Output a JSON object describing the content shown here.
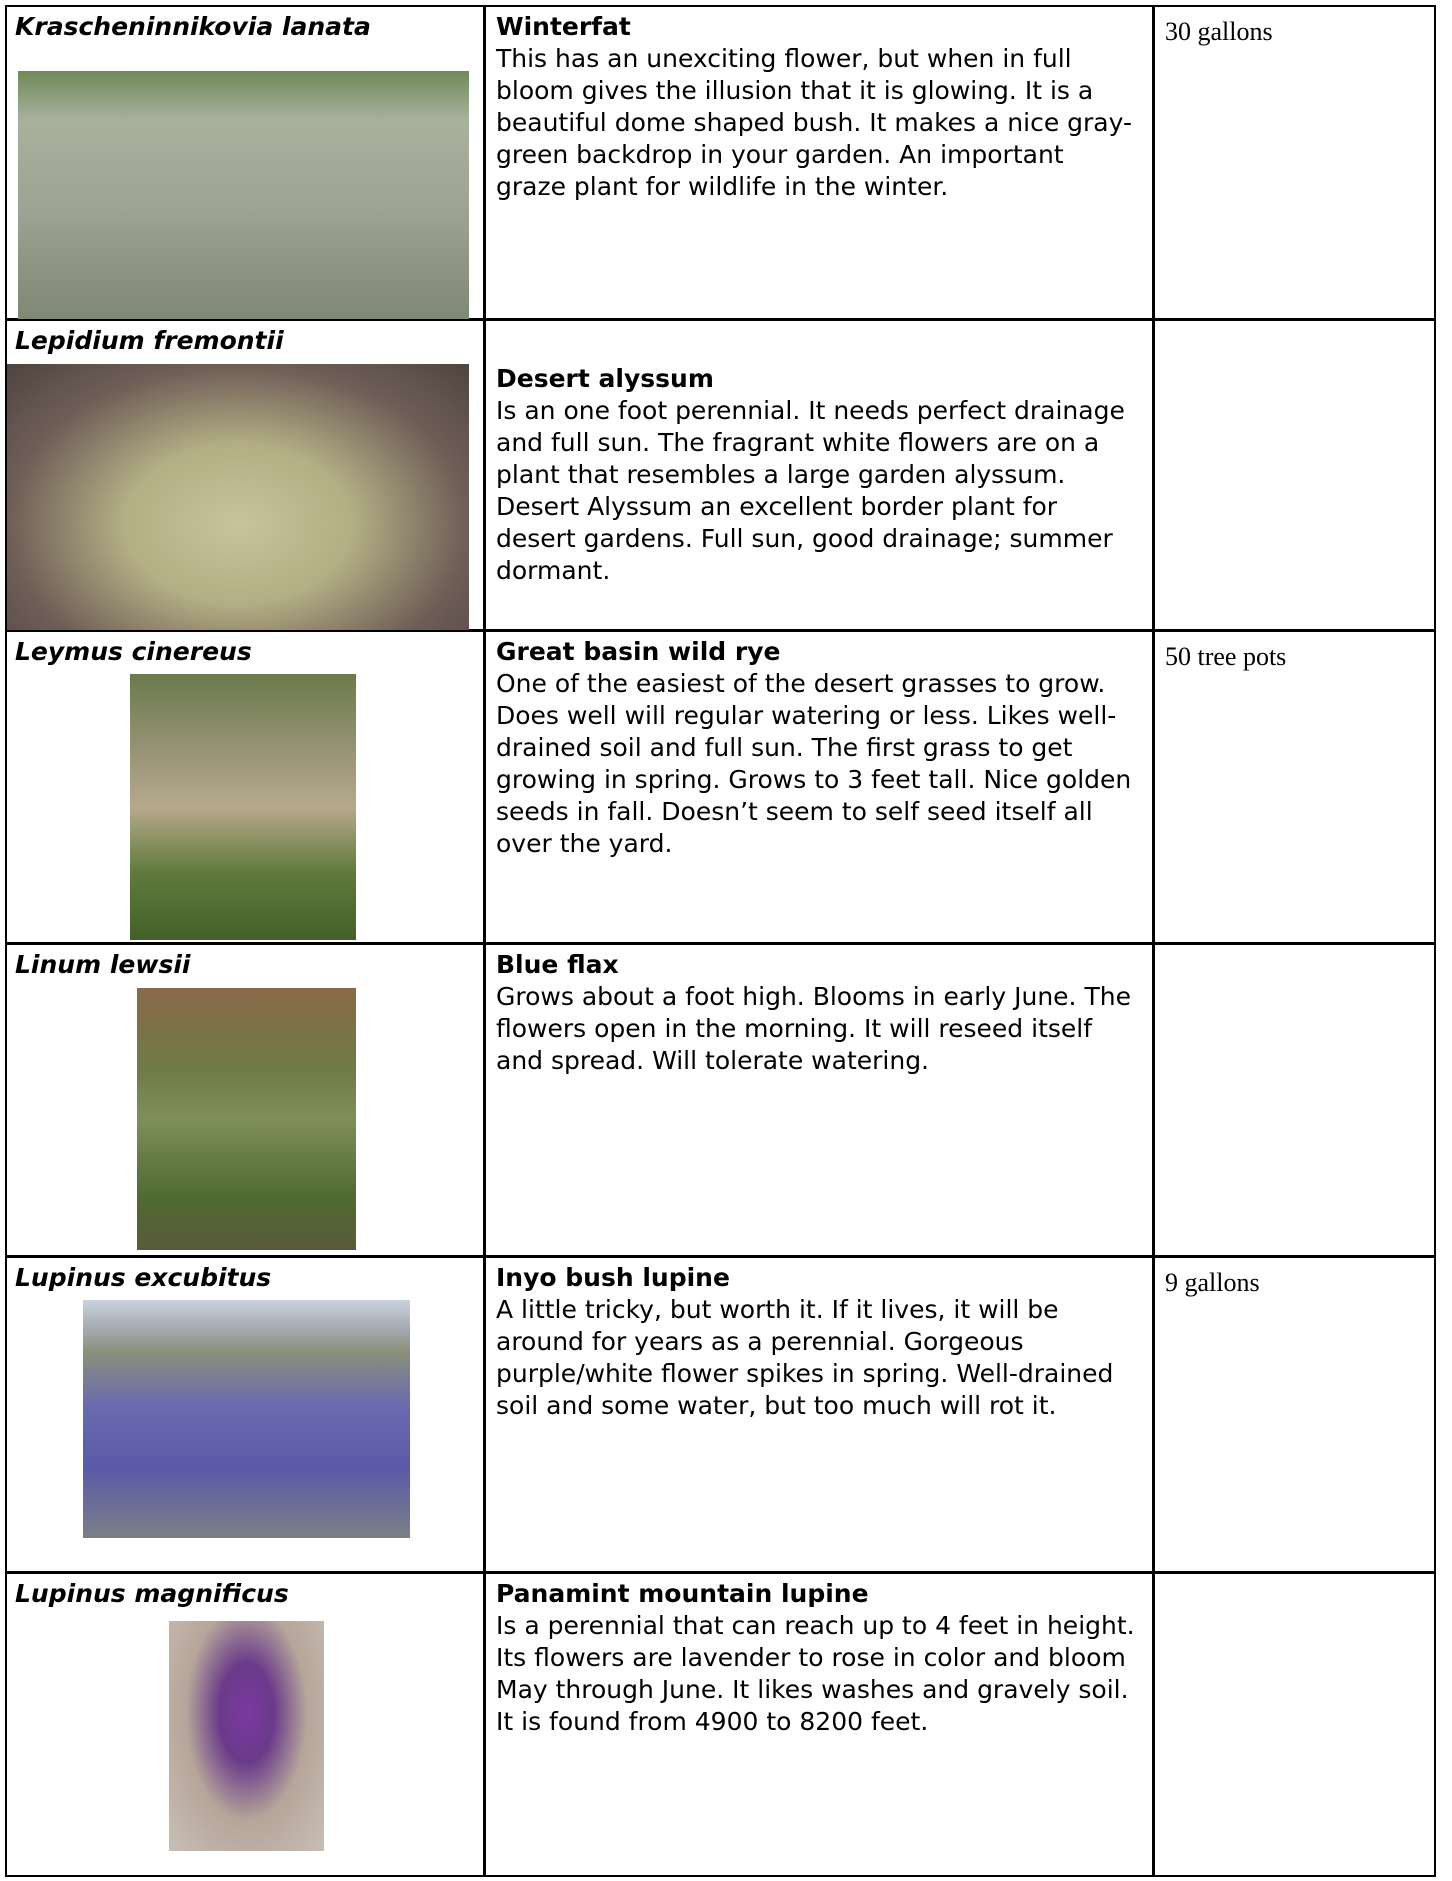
{
  "table": {
    "rows": [
      {
        "scientific_name": "Krascheninnikovia lanata",
        "common_name": "Winterfat",
        "description": "This has an unexciting flower, but when in full bloom gives the illusion that it is glowing. It is a beautiful dome shaped bush. It makes a nice gray-green backdrop in your garden. An important graze plant for wildlife in the winter.",
        "size": "30 gallons"
      },
      {
        "scientific_name": "Lepidium fremontii",
        "common_name": "Desert alyssum",
        "description": "Is an one foot perennial. It needs perfect drainage and full sun. The fragrant white flowers are on a plant that resembles a large garden alyssum. Desert Alyssum an excellent border plant for desert gardens. Full sun, good drainage; summer dormant."
      },
      {
        "scientific_name": "Leymus cinereus",
        "common_name": "Great basin wild rye",
        "description": "One of the easiest of the desert grasses to grow. Does well will regular watering or less. Likes well-drained soil and full sun. The first grass to get growing in spring. Grows to 3 feet tall. Nice golden seeds in fall. Doesn’t seem to self seed itself all over the yard.",
        "size": "50 tree pots"
      },
      {
        "scientific_name": "Linum lewsii",
        "common_name": "Blue flax",
        "description": "Grows about a foot high. Blooms in early June. The flowers open in the morning. It will reseed itself and spread. Will tolerate watering."
      },
      {
        "scientific_name": "Lupinus excubitus",
        "common_name": "Inyo bush lupine",
        "description": "A little tricky, but worth it. If it lives, it will be around for years as a perennial. Gorgeous purple/white flower spikes in spring. Well-drained soil and some water, but too much will rot it.",
        "size": "9 gallons"
      },
      {
        "scientific_name": "Lupinus magnificus",
        "common_name": "Panamint mountain lupine",
        "description": "Is a perennial that can reach up to 4 feet in height. Its flowers are lavender to rose in color and bloom May through June. It likes washes and gravely soil. It is found from 4900 to 8200 feet."
      }
    ]
  }
}
